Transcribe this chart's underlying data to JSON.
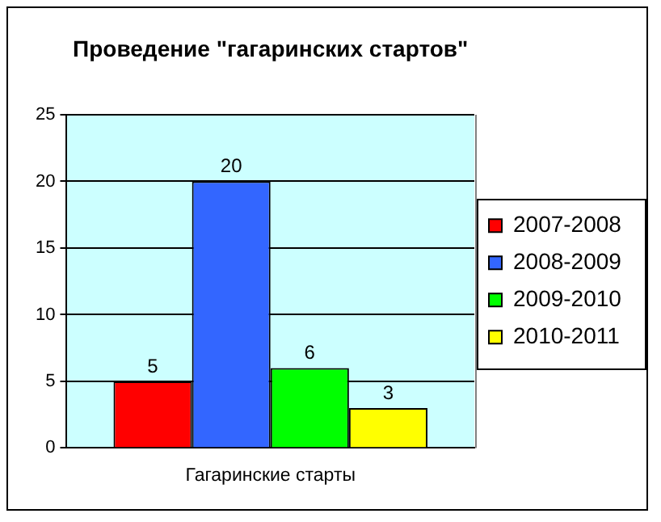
{
  "chart_data": {
    "type": "bar",
    "title": "Проведение \"гагаринских стартов\"",
    "categories": [
      "Гагаринские старты"
    ],
    "series": [
      {
        "name": "2007-2008",
        "color": "#ff0000",
        "values": [
          5
        ]
      },
      {
        "name": "2008-2009",
        "color": "#3366ff",
        "values": [
          20
        ]
      },
      {
        "name": "2009-2010",
        "color": "#00ff00",
        "values": [
          6
        ]
      },
      {
        "name": "2010-2011",
        "color": "#ffff00",
        "values": [
          3
        ]
      }
    ],
    "ylim": [
      0,
      25
    ],
    "yticks": [
      0,
      5,
      10,
      15,
      20,
      25
    ],
    "grid": "y",
    "legend": "right",
    "data_labels": true
  }
}
